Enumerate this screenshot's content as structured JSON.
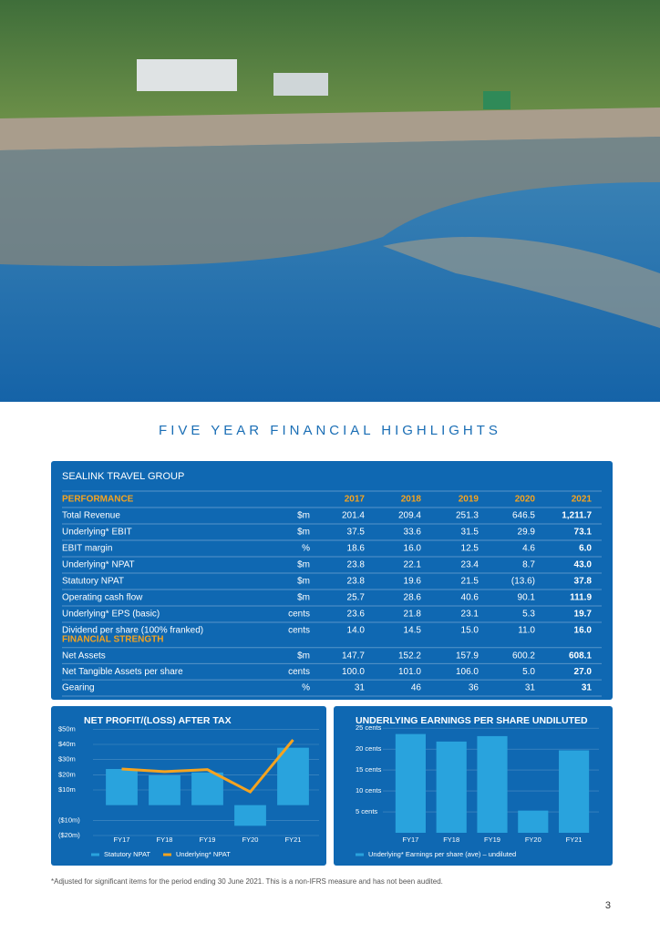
{
  "title": "FIVE YEAR FINANCIAL HIGHLIGHTS",
  "table": {
    "heading": "SEALINK TRAVEL GROUP",
    "years": [
      "2017",
      "2018",
      "2019",
      "2020",
      "2021"
    ],
    "sections": [
      {
        "title": "PERFORMANCE",
        "rows": [
          {
            "label": "Total Revenue",
            "unit": "$m",
            "values": [
              "201.4",
              "209.4",
              "251.3",
              "646.5",
              "1,211.7"
            ]
          },
          {
            "label": "Underlying* EBIT",
            "unit": "$m",
            "values": [
              "37.5",
              "33.6",
              "31.5",
              "29.9",
              "73.1"
            ]
          },
          {
            "label": "EBIT margin",
            "unit": "%",
            "values": [
              "18.6",
              "16.0",
              "12.5",
              "4.6",
              "6.0"
            ]
          },
          {
            "label": "Underlying* NPAT",
            "unit": "$m",
            "values": [
              "23.8",
              "22.1",
              "23.4",
              "8.7",
              "43.0"
            ]
          },
          {
            "label": "Statutory NPAT",
            "unit": "$m",
            "values": [
              "23.8",
              "19.6",
              "21.5",
              "(13.6)",
              "37.8"
            ]
          },
          {
            "label": "Operating cash flow",
            "unit": "$m",
            "values": [
              "25.7",
              "28.6",
              "40.6",
              "90.1",
              "111.9"
            ]
          },
          {
            "label": "Underlying* EPS (basic)",
            "unit": "cents",
            "values": [
              "23.6",
              "21.8",
              "23.1",
              "5.3",
              "19.7"
            ]
          },
          {
            "label": "Dividend per share (100% franked)",
            "unit": "cents",
            "values": [
              "14.0",
              "14.5",
              "15.0",
              "11.0",
              "16.0"
            ]
          }
        ]
      },
      {
        "title": "FINANCIAL STRENGTH",
        "rows": [
          {
            "label": "Net Assets",
            "unit": "$m",
            "values": [
              "147.7",
              "152.2",
              "157.9",
              "600.2",
              "608.1"
            ]
          },
          {
            "label": "Net Tangible Assets per share",
            "unit": "cents",
            "values": [
              "100.0",
              "101.0",
              "106.0",
              "5.0",
              "27.0"
            ]
          },
          {
            "label": "Gearing",
            "unit": "%",
            "values": [
              "31",
              "46",
              "36",
              "31",
              "31"
            ]
          }
        ]
      }
    ]
  },
  "chart_data": [
    {
      "type": "bar",
      "title": "NET PROFIT/(LOSS) AFTER TAX",
      "categories": [
        "FY17",
        "FY18",
        "FY19",
        "FY20",
        "FY21"
      ],
      "series": [
        {
          "name": "Statutory NPAT",
          "type": "bar",
          "color": "#29a3dd",
          "values": [
            23.8,
            19.6,
            21.5,
            -13.6,
            37.8
          ]
        },
        {
          "name": "Underlying* NPAT",
          "type": "line",
          "color": "#f5a31f",
          "values": [
            23.8,
            22.1,
            23.4,
            8.7,
            43.0
          ]
        }
      ],
      "ylim": [
        -20,
        55
      ],
      "yticks": [
        {
          "value": 50,
          "label": "$50m"
        },
        {
          "value": 40,
          "label": "$40m"
        },
        {
          "value": 30,
          "label": "$30m"
        },
        {
          "value": 20,
          "label": "$20m"
        },
        {
          "value": 10,
          "label": "$10m"
        },
        {
          "value": -10,
          "label": "($10m)"
        },
        {
          "value": -20,
          "label": "($20m)"
        }
      ],
      "grid": true
    },
    {
      "type": "bar",
      "title": "UNDERLYING EARNINGS PER SHARE UNDILUTED",
      "categories": [
        "FY17",
        "FY18",
        "FY19",
        "FY20",
        "FY21"
      ],
      "series": [
        {
          "name": "Underlying* Earnings per share (ave) – undiluted",
          "type": "bar",
          "color": "#29a3dd",
          "values": [
            23.6,
            21.8,
            23.1,
            5.3,
            19.7
          ]
        }
      ],
      "ylim": [
        0,
        27
      ],
      "yticks": [
        {
          "value": 25,
          "label": "25 cents"
        },
        {
          "value": 20,
          "label": "20 cents"
        },
        {
          "value": 15,
          "label": "15 cents"
        },
        {
          "value": 10,
          "label": "10 cents"
        },
        {
          "value": 5,
          "label": "5 cents"
        }
      ],
      "grid": true
    }
  ],
  "footnote": "*Adjusted for significant items for the period ending 30 June 2021. This is a non-IFRS measure and has not been audited.",
  "page_number": "3"
}
